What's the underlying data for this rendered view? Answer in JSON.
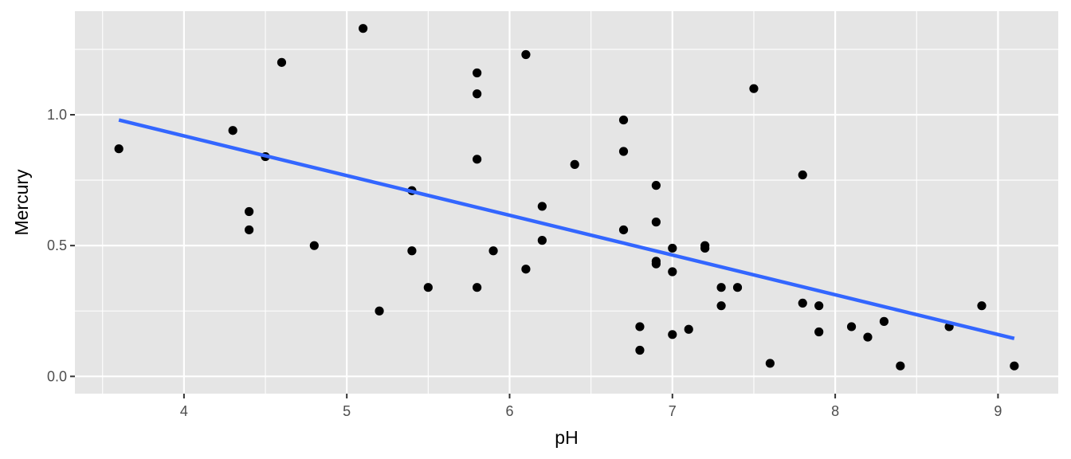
{
  "chart_data": {
    "type": "scatter",
    "title": "",
    "xlabel": "pH",
    "ylabel": "Mercury",
    "xlim": [
      3.33,
      9.37
    ],
    "ylim": [
      -0.066,
      1.396
    ],
    "x_major_ticks": [
      4,
      5,
      6,
      7,
      8,
      9
    ],
    "x_tick_labels": [
      "4",
      "5",
      "6",
      "7",
      "8",
      "9"
    ],
    "y_major_ticks": [
      0.0,
      0.5,
      1.0
    ],
    "y_tick_labels": [
      "0.0",
      "0.5",
      "1.0"
    ],
    "x_minor_ticks": [
      3.5,
      4.5,
      5.5,
      6.5,
      7.5,
      8.5
    ],
    "y_minor_ticks": [
      0.25,
      0.75,
      1.25
    ],
    "grid": true,
    "points": [
      {
        "x": 3.6,
        "y": 0.87
      },
      {
        "x": 4.3,
        "y": 0.94
      },
      {
        "x": 4.4,
        "y": 0.63
      },
      {
        "x": 4.4,
        "y": 0.56
      },
      {
        "x": 4.5,
        "y": 0.84
      },
      {
        "x": 4.6,
        "y": 1.2
      },
      {
        "x": 4.8,
        "y": 0.5
      },
      {
        "x": 5.1,
        "y": 1.33
      },
      {
        "x": 5.2,
        "y": 0.25
      },
      {
        "x": 5.4,
        "y": 0.71
      },
      {
        "x": 5.4,
        "y": 0.48
      },
      {
        "x": 5.5,
        "y": 0.34
      },
      {
        "x": 5.8,
        "y": 1.16
      },
      {
        "x": 5.8,
        "y": 1.08
      },
      {
        "x": 5.8,
        "y": 0.83
      },
      {
        "x": 5.8,
        "y": 0.34
      },
      {
        "x": 5.9,
        "y": 0.48
      },
      {
        "x": 6.1,
        "y": 1.23
      },
      {
        "x": 6.1,
        "y": 0.41
      },
      {
        "x": 6.2,
        "y": 0.65
      },
      {
        "x": 6.2,
        "y": 0.52
      },
      {
        "x": 6.4,
        "y": 0.81
      },
      {
        "x": 6.7,
        "y": 0.98
      },
      {
        "x": 6.7,
        "y": 0.86
      },
      {
        "x": 6.7,
        "y": 0.56
      },
      {
        "x": 6.8,
        "y": 0.19
      },
      {
        "x": 6.8,
        "y": 0.1
      },
      {
        "x": 6.9,
        "y": 0.73
      },
      {
        "x": 6.9,
        "y": 0.59
      },
      {
        "x": 6.9,
        "y": 0.44
      },
      {
        "x": 6.9,
        "y": 0.43
      },
      {
        "x": 7.0,
        "y": 0.49
      },
      {
        "x": 7.0,
        "y": 0.4
      },
      {
        "x": 7.0,
        "y": 0.16
      },
      {
        "x": 7.1,
        "y": 0.18
      },
      {
        "x": 7.2,
        "y": 0.5
      },
      {
        "x": 7.2,
        "y": 0.49
      },
      {
        "x": 7.3,
        "y": 0.34
      },
      {
        "x": 7.3,
        "y": 0.27
      },
      {
        "x": 7.4,
        "y": 0.34
      },
      {
        "x": 7.5,
        "y": 1.1
      },
      {
        "x": 7.6,
        "y": 0.05
      },
      {
        "x": 7.8,
        "y": 0.77
      },
      {
        "x": 7.8,
        "y": 0.28
      },
      {
        "x": 7.9,
        "y": 0.27
      },
      {
        "x": 7.9,
        "y": 0.17
      },
      {
        "x": 8.1,
        "y": 0.19
      },
      {
        "x": 8.2,
        "y": 0.15
      },
      {
        "x": 8.3,
        "y": 0.21
      },
      {
        "x": 8.4,
        "y": 0.04
      },
      {
        "x": 8.7,
        "y": 0.19
      },
      {
        "x": 8.9,
        "y": 0.27
      },
      {
        "x": 9.1,
        "y": 0.04
      }
    ],
    "fit_line": {
      "x": [
        3.6,
        9.1
      ],
      "y": [
        0.98,
        0.145
      ]
    },
    "colors": {
      "points": "#000000",
      "fit_line": "#3366ff",
      "panel": "#e5e5e5",
      "grid": "#ffffff"
    }
  }
}
